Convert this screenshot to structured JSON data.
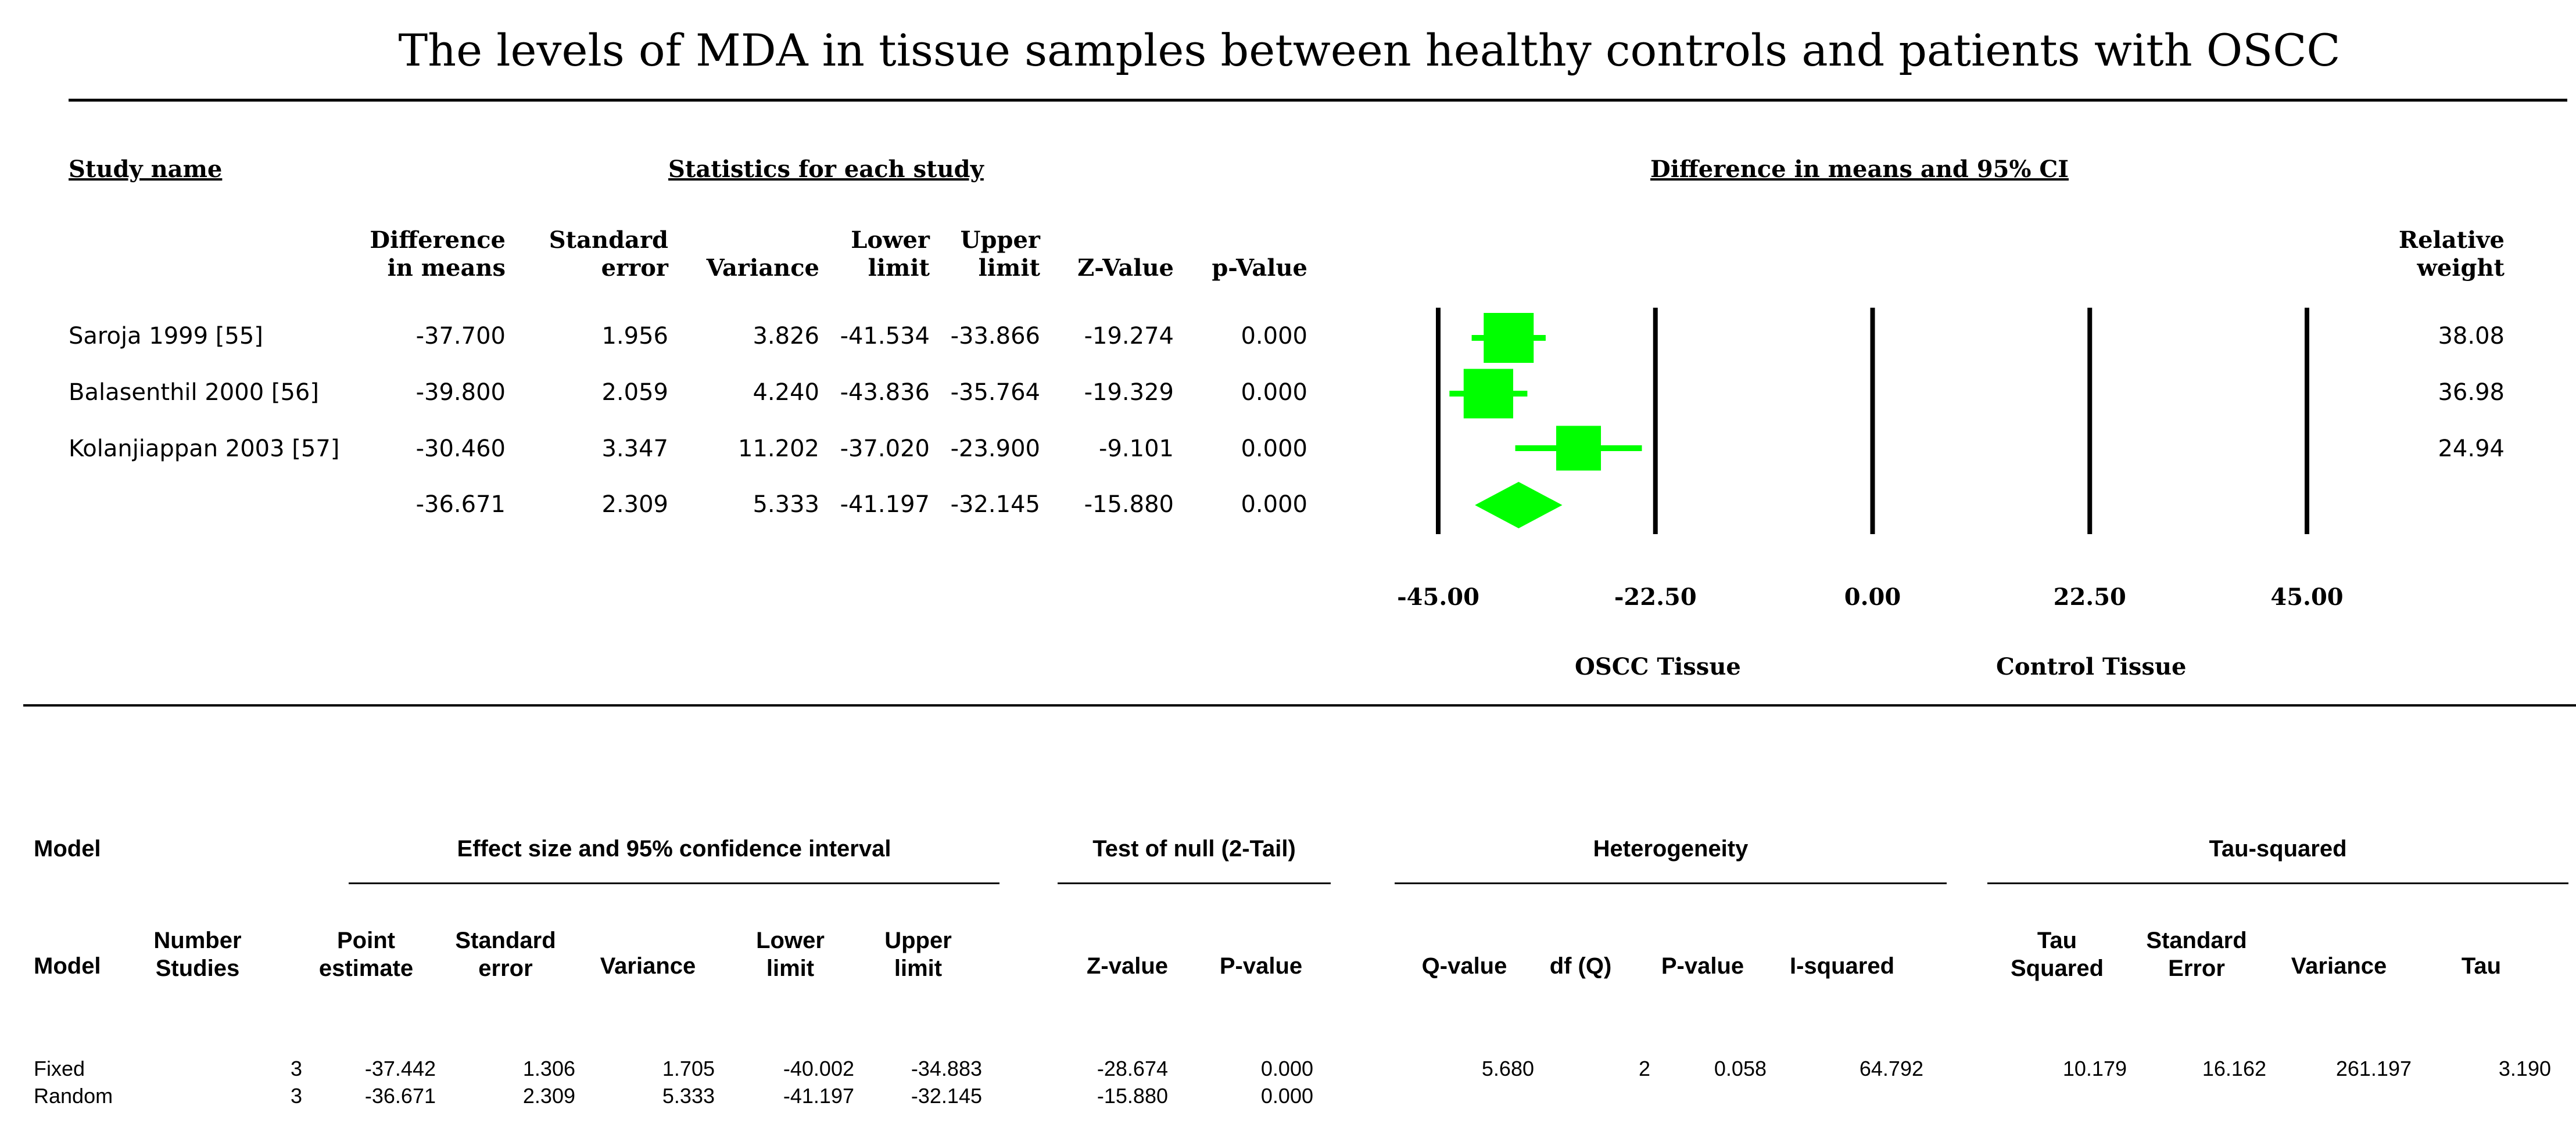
{
  "title": "The levels of MDA in tissue samples between healthy controls and patients with OSCC",
  "top_table": {
    "study_name_header": "Study name",
    "stats_header": "Statistics for each study",
    "plot_header": "Difference in means and 95% CI",
    "columns": {
      "diff_1": "Difference",
      "diff_2": "in means",
      "se_1": "Standard",
      "se_2": "error",
      "variance": "Variance",
      "lower_1": "Lower",
      "lower_2": "limit",
      "upper_1": "Upper",
      "upper_2": "limit",
      "z": "Z-Value",
      "p": "p-Value",
      "rw_1": "Relative",
      "rw_2": "weight"
    },
    "rows": [
      {
        "name": "Saroja 1999 [55]",
        "diff": "-37.700",
        "se": "1.956",
        "variance": "3.826",
        "lower": "-41.534",
        "upper": "-33.866",
        "z": "-19.274",
        "p": "0.000",
        "weight": "38.08"
      },
      {
        "name": "Balasenthil 2000 [56]",
        "diff": "-39.800",
        "se": "2.059",
        "variance": "4.240",
        "lower": "-43.836",
        "upper": "-35.764",
        "z": "-19.329",
        "p": "0.000",
        "weight": "36.98"
      },
      {
        "name": "Kolanjiappan 2003 [57]",
        "diff": "-30.460",
        "se": "3.347",
        "variance": "11.202",
        "lower": "-37.020",
        "upper": "-23.900",
        "z": "-9.101",
        "p": "0.000",
        "weight": "24.94"
      },
      {
        "name": "",
        "diff": "-36.671",
        "se": "2.309",
        "variance": "5.333",
        "lower": "-41.197",
        "upper": "-32.145",
        "z": "-15.880",
        "p": "0.000",
        "weight": ""
      }
    ],
    "axis_left_label": "OSCC Tissue",
    "axis_right_label": "Control Tissue"
  },
  "chart_data": {
    "type": "forest",
    "title": "Difference in means and 95% CI",
    "xlim": [
      -45,
      45
    ],
    "ticks": [
      -45,
      -22.5,
      0,
      22.5,
      45
    ],
    "tick_labels": [
      "-45.00",
      "-22.50",
      "0.00",
      "22.50",
      "45.00"
    ],
    "studies": [
      {
        "name": "Saroja 1999 [55]",
        "estimate": -37.7,
        "lower": -41.534,
        "upper": -33.866,
        "weight": 38.08
      },
      {
        "name": "Balasenthil 2000 [56]",
        "estimate": -39.8,
        "lower": -43.836,
        "upper": -35.764,
        "weight": 36.98
      },
      {
        "name": "Kolanjiappan 2003 [57]",
        "estimate": -30.46,
        "lower": -37.02,
        "upper": -23.9,
        "weight": 24.94
      }
    ],
    "summary": {
      "estimate": -36.671,
      "lower": -41.197,
      "upper": -32.145
    },
    "xlabel_left": "OSCC Tissue",
    "xlabel_right": "Control Tissue",
    "color": "#00ff00"
  },
  "bottom_table": {
    "groups": {
      "model": "Model",
      "effect": "Effect size and 95% confidence interval",
      "null": "Test of null (2-Tail)",
      "het": "Heterogeneity",
      "tau": "Tau-squared"
    },
    "columns": {
      "model": "Model",
      "num_1": "Number",
      "num_2": "Studies",
      "pe_1": "Point",
      "pe_2": "estimate",
      "se_1": "Standard",
      "se_2": "error",
      "variance": "Variance",
      "lower_1": "Lower",
      "lower_2": "limit",
      "upper_1": "Upper",
      "upper_2": "limit",
      "z": "Z-value",
      "p": "P-value",
      "q": "Q-value",
      "df": "df (Q)",
      "hp": "P-value",
      "i2": "I-squared",
      "tau_1": "Tau",
      "tau_2": "Squared",
      "tse_1": "Standard",
      "tse_2": "Error",
      "tvar": "Variance",
      "tau": "Tau"
    },
    "rows": [
      {
        "model": "Fixed",
        "n": "3",
        "pe": "-37.442",
        "se": "1.306",
        "var": "1.705",
        "lower": "-40.002",
        "upper": "-34.883",
        "z": "-28.674",
        "p": "0.000",
        "q": "5.680",
        "df": "2",
        "hp": "0.058",
        "i2": "64.792",
        "tau2": "10.179",
        "tse": "16.162",
        "tvar": "261.197",
        "tau": "3.190"
      },
      {
        "model": "Random",
        "n": "3",
        "pe": "-36.671",
        "se": "2.309",
        "var": "5.333",
        "lower": "-41.197",
        "upper": "-32.145",
        "z": "-15.880",
        "p": "0.000",
        "q": "",
        "df": "",
        "hp": "",
        "i2": "",
        "tau2": "",
        "tse": "",
        "tvar": "",
        "tau": ""
      }
    ]
  }
}
